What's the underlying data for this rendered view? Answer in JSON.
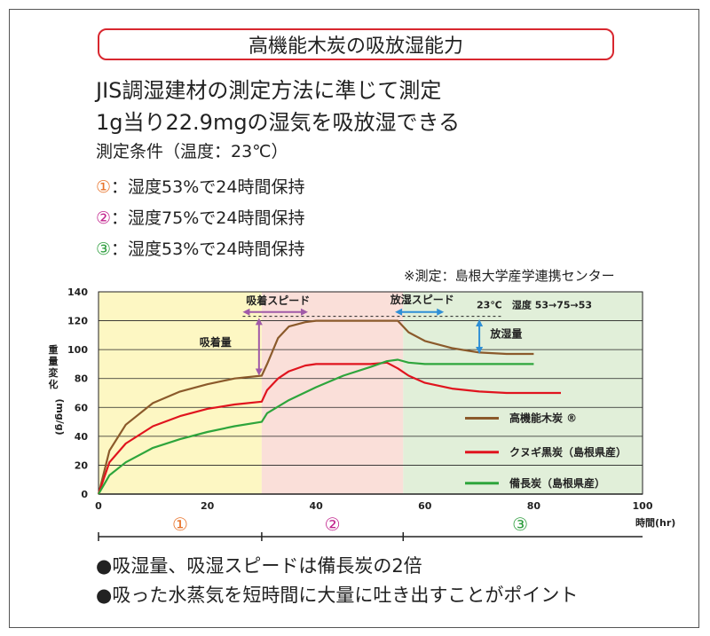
{
  "header": {
    "title": "高機能木炭の吸放湿能力",
    "line1": "JIS調湿建材の測定方法に準じて測定",
    "line2": "1g当り22.9mgの湿気を吸放湿できる",
    "conditions_title": "測定条件（温度：23℃）",
    "conditions": [
      {
        "marker": "①",
        "text": "：湿度53%で24時間保持",
        "color": "#e8732a"
      },
      {
        "marker": "②",
        "text": "：湿度75%で24時間保持",
        "color": "#c2258e"
      },
      {
        "marker": "③",
        "text": "：湿度53%で24時間保持",
        "color": "#2e9e3e"
      }
    ],
    "source_note": "※測定：島根大学産学連携センター"
  },
  "bullets": [
    "●吸湿量、吸湿スピードは備長炭の2倍",
    "●吸った水蒸気を短時間に大量に吐き出すことがポイント"
  ],
  "chart_data": {
    "type": "line",
    "xlabel": "時間(hr)",
    "ylabel": "重量変化",
    "ylabel_unit": "(mg/g)",
    "xlim": [
      0,
      100
    ],
    "ylim": [
      0,
      140
    ],
    "x_ticks": [
      0,
      20,
      40,
      60,
      80,
      100
    ],
    "y_ticks": [
      0,
      20,
      40,
      60,
      80,
      100,
      120,
      140
    ],
    "grid": true,
    "legend_position": "bottom-right",
    "phases": [
      {
        "label": "①",
        "x_start": 0,
        "x_end": 30,
        "fill": "#fdf7c3",
        "color": "#e8732a"
      },
      {
        "label": "②",
        "x_start": 30,
        "x_end": 56,
        "fill": "#fadfd9",
        "color": "#c2258e"
      },
      {
        "label": "③",
        "x_start": 56,
        "x_end": 100,
        "fill": "#e1efd9",
        "color": "#2e9e3e"
      }
    ],
    "series": [
      {
        "name": "高機能木炭 ®",
        "color": "#8b5a2b",
        "x": [
          0,
          2,
          5,
          10,
          15,
          20,
          25,
          30,
          31,
          33,
          35,
          38,
          40,
          45,
          50,
          55,
          57,
          60,
          65,
          70,
          75,
          80
        ],
        "y": [
          0,
          30,
          48,
          63,
          71,
          76,
          80,
          82,
          90,
          108,
          116,
          119,
          120,
          120,
          120,
          120,
          112,
          106,
          101,
          98,
          97,
          97
        ]
      },
      {
        "name": "クヌギ黒炭（島根県産）",
        "color": "#e0141e",
        "x": [
          0,
          2,
          5,
          10,
          15,
          20,
          25,
          30,
          31,
          33,
          35,
          38,
          40,
          45,
          50,
          53,
          55,
          57,
          60,
          65,
          70,
          75,
          80,
          85
        ],
        "y": [
          0,
          22,
          35,
          47,
          54,
          59,
          62,
          64,
          72,
          80,
          85,
          89,
          90,
          90,
          90,
          91,
          87,
          82,
          77,
          73,
          71,
          70,
          70,
          70
        ]
      },
      {
        "name": "備長炭（島根県産）",
        "color": "#2ea53c",
        "x": [
          0,
          2,
          5,
          10,
          15,
          20,
          25,
          30,
          31,
          35,
          40,
          45,
          50,
          53,
          55,
          57,
          60,
          65,
          70,
          75,
          80
        ],
        "y": [
          0,
          13,
          22,
          32,
          38,
          43,
          47,
          50,
          56,
          65,
          74,
          82,
          88,
          92,
          93,
          91,
          90,
          90,
          90,
          90,
          90
        ]
      }
    ],
    "annotations": {
      "adsorb_speed": "吸着スピード",
      "adsorb_amount": "吸着量",
      "release_speed": "放湿スピード",
      "release_amount": "放湿量",
      "temp": "23℃",
      "humidity": "湿度 53→75→53"
    }
  }
}
